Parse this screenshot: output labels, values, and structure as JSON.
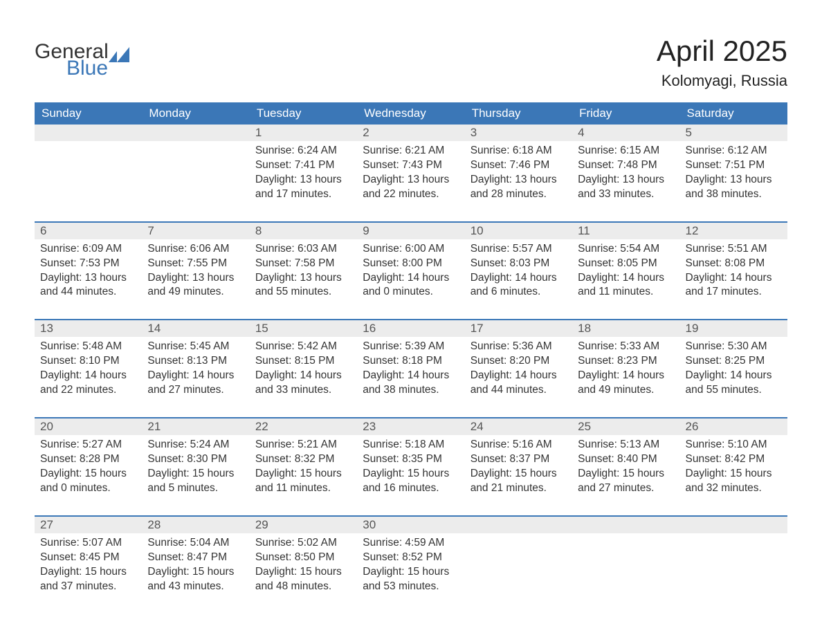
{
  "logo": {
    "word1": "General",
    "word2": "Blue"
  },
  "title": "April 2025",
  "location": "Kolomyagi, Russia",
  "colors": {
    "brand_blue": "#3b77b7",
    "header_text": "#ffffff",
    "daynum_bg": "#ececec",
    "daynum_text": "#555555",
    "body_text": "#333333",
    "background": "#ffffff"
  },
  "typography": {
    "title_fontsize_pt": 32,
    "location_fontsize_pt": 17,
    "header_fontsize_pt": 13,
    "daynum_fontsize_pt": 13,
    "body_fontsize_pt": 12
  },
  "layout": {
    "columns": 7,
    "rows_of_weeks": 5,
    "cell_aspect": "auto"
  },
  "day_headers": [
    "Sunday",
    "Monday",
    "Tuesday",
    "Wednesday",
    "Thursday",
    "Friday",
    "Saturday"
  ],
  "weeks": [
    [
      null,
      null,
      {
        "n": "1",
        "sunrise": "6:24 AM",
        "sunset": "7:41 PM",
        "dl_h": "13",
        "dl_m": "17"
      },
      {
        "n": "2",
        "sunrise": "6:21 AM",
        "sunset": "7:43 PM",
        "dl_h": "13",
        "dl_m": "22"
      },
      {
        "n": "3",
        "sunrise": "6:18 AM",
        "sunset": "7:46 PM",
        "dl_h": "13",
        "dl_m": "28"
      },
      {
        "n": "4",
        "sunrise": "6:15 AM",
        "sunset": "7:48 PM",
        "dl_h": "13",
        "dl_m": "33"
      },
      {
        "n": "5",
        "sunrise": "6:12 AM",
        "sunset": "7:51 PM",
        "dl_h": "13",
        "dl_m": "38"
      }
    ],
    [
      {
        "n": "6",
        "sunrise": "6:09 AM",
        "sunset": "7:53 PM",
        "dl_h": "13",
        "dl_m": "44"
      },
      {
        "n": "7",
        "sunrise": "6:06 AM",
        "sunset": "7:55 PM",
        "dl_h": "13",
        "dl_m": "49"
      },
      {
        "n": "8",
        "sunrise": "6:03 AM",
        "sunset": "7:58 PM",
        "dl_h": "13",
        "dl_m": "55"
      },
      {
        "n": "9",
        "sunrise": "6:00 AM",
        "sunset": "8:00 PM",
        "dl_h": "14",
        "dl_m": "0"
      },
      {
        "n": "10",
        "sunrise": "5:57 AM",
        "sunset": "8:03 PM",
        "dl_h": "14",
        "dl_m": "6"
      },
      {
        "n": "11",
        "sunrise": "5:54 AM",
        "sunset": "8:05 PM",
        "dl_h": "14",
        "dl_m": "11"
      },
      {
        "n": "12",
        "sunrise": "5:51 AM",
        "sunset": "8:08 PM",
        "dl_h": "14",
        "dl_m": "17"
      }
    ],
    [
      {
        "n": "13",
        "sunrise": "5:48 AM",
        "sunset": "8:10 PM",
        "dl_h": "14",
        "dl_m": "22"
      },
      {
        "n": "14",
        "sunrise": "5:45 AM",
        "sunset": "8:13 PM",
        "dl_h": "14",
        "dl_m": "27"
      },
      {
        "n": "15",
        "sunrise": "5:42 AM",
        "sunset": "8:15 PM",
        "dl_h": "14",
        "dl_m": "33"
      },
      {
        "n": "16",
        "sunrise": "5:39 AM",
        "sunset": "8:18 PM",
        "dl_h": "14",
        "dl_m": "38"
      },
      {
        "n": "17",
        "sunrise": "5:36 AM",
        "sunset": "8:20 PM",
        "dl_h": "14",
        "dl_m": "44"
      },
      {
        "n": "18",
        "sunrise": "5:33 AM",
        "sunset": "8:23 PM",
        "dl_h": "14",
        "dl_m": "49"
      },
      {
        "n": "19",
        "sunrise": "5:30 AM",
        "sunset": "8:25 PM",
        "dl_h": "14",
        "dl_m": "55"
      }
    ],
    [
      {
        "n": "20",
        "sunrise": "5:27 AM",
        "sunset": "8:28 PM",
        "dl_h": "15",
        "dl_m": "0"
      },
      {
        "n": "21",
        "sunrise": "5:24 AM",
        "sunset": "8:30 PM",
        "dl_h": "15",
        "dl_m": "5"
      },
      {
        "n": "22",
        "sunrise": "5:21 AM",
        "sunset": "8:32 PM",
        "dl_h": "15",
        "dl_m": "11"
      },
      {
        "n": "23",
        "sunrise": "5:18 AM",
        "sunset": "8:35 PM",
        "dl_h": "15",
        "dl_m": "16"
      },
      {
        "n": "24",
        "sunrise": "5:16 AM",
        "sunset": "8:37 PM",
        "dl_h": "15",
        "dl_m": "21"
      },
      {
        "n": "25",
        "sunrise": "5:13 AM",
        "sunset": "8:40 PM",
        "dl_h": "15",
        "dl_m": "27"
      },
      {
        "n": "26",
        "sunrise": "5:10 AM",
        "sunset": "8:42 PM",
        "dl_h": "15",
        "dl_m": "32"
      }
    ],
    [
      {
        "n": "27",
        "sunrise": "5:07 AM",
        "sunset": "8:45 PM",
        "dl_h": "15",
        "dl_m": "37"
      },
      {
        "n": "28",
        "sunrise": "5:04 AM",
        "sunset": "8:47 PM",
        "dl_h": "15",
        "dl_m": "43"
      },
      {
        "n": "29",
        "sunrise": "5:02 AM",
        "sunset": "8:50 PM",
        "dl_h": "15",
        "dl_m": "48"
      },
      {
        "n": "30",
        "sunrise": "4:59 AM",
        "sunset": "8:52 PM",
        "dl_h": "15",
        "dl_m": "53"
      },
      null,
      null,
      null
    ]
  ],
  "labels": {
    "sunrise_prefix": "Sunrise: ",
    "sunset_prefix": "Sunset: ",
    "daylight_prefix": "Daylight: ",
    "daylight_mid": " hours and ",
    "daylight_suffix": " minutes."
  }
}
